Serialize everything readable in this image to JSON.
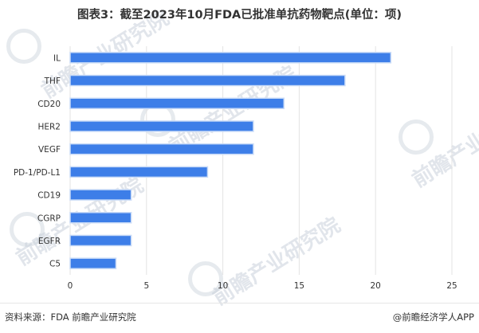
{
  "title": "图表3：截至2023年10月FDA已批准单抗药物靶点(单位：项)",
  "watermark_text": "前瞻产业研究院",
  "footer": {
    "source": "资料来源：FDA 前瞻产业研究院",
    "credit": "@前瞻经济学人APP"
  },
  "colors": {
    "bar": "#3d7ee8",
    "grid": "#e3e3e3",
    "tick_text": "#333333"
  },
  "chart_data": {
    "type": "bar",
    "orientation": "horizontal",
    "title": "图表3：截至2023年10月FDA已批准单抗药物靶点(单位：项)",
    "xlabel": "",
    "ylabel": "",
    "categories": [
      "IL",
      "THF",
      "CD20",
      "HER2",
      "VEGF",
      "PD-1/PD-L1",
      "CD19",
      "CGRP",
      "EGFR",
      "C5"
    ],
    "values": [
      21,
      18,
      14,
      12,
      12,
      9,
      4,
      4,
      4,
      3
    ],
    "xlim": [
      0,
      25
    ],
    "xticks": [
      "0",
      "5",
      "10",
      "15",
      "20",
      "25"
    ],
    "grid": "vertical",
    "legend": "none"
  }
}
